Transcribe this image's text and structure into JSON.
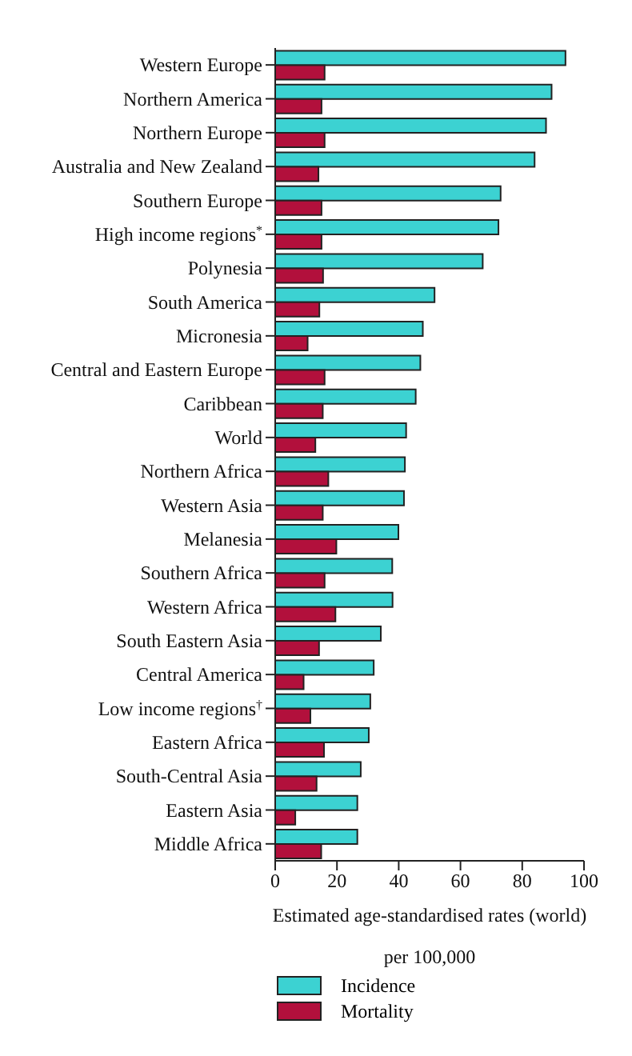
{
  "chart_data": {
    "type": "bar",
    "orientation": "horizontal",
    "xlabel": "Estimated age-standardised rates (world)\nper 100,000",
    "categories": [
      "Western Europe",
      "Northern America",
      "Northern Europe",
      "Australia and New Zealand",
      "Southern Europe",
      "High income regions$^{*}$",
      "Polynesia",
      "South America",
      "Micronesia",
      "Central and Eastern Europe",
      "Caribbean",
      "World",
      "Northern Africa",
      "Western Asia",
      "Melanesia",
      "Southern Africa",
      "Western Africa",
      "South Eastern Asia",
      "Central America",
      "Low income regions$^{†}$",
      "Eastern Africa",
      "South-Central Asia",
      "Eastern Asia",
      "Middle Africa"
    ],
    "series": [
      {
        "name": "Incidence",
        "color": "#3cd2d2",
        "values": [
          94,
          89.5,
          87.7,
          84,
          73,
          72.3,
          67.2,
          51.6,
          47.8,
          47,
          45.5,
          42.4,
          42,
          41.7,
          39.9,
          37.9,
          38,
          34.2,
          31.9,
          30.8,
          30.3,
          27.7,
          26.6,
          26.6
        ]
      },
      {
        "name": "Mortality",
        "color": "#b2103c",
        "values": [
          16,
          15,
          16,
          14,
          15,
          15,
          15.5,
          14.3,
          10.5,
          16,
          15.4,
          13,
          17.2,
          15.4,
          19.8,
          16,
          19.5,
          14.2,
          9.2,
          11.4,
          15.8,
          13.4,
          6.5,
          14.9
        ]
      }
    ],
    "xlim": [
      0,
      100
    ],
    "xticks": [
      0,
      20,
      40,
      60,
      80,
      100
    ],
    "legend": "bottom left",
    "grid": false
  }
}
